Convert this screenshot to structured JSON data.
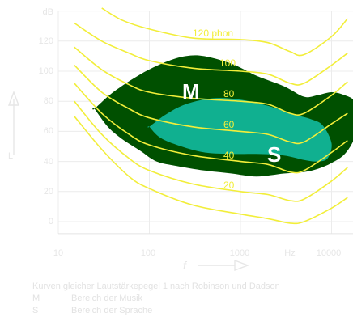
{
  "chart_data": {
    "type": "line",
    "x_scale": "log",
    "x_range_hz": [
      10,
      20000
    ],
    "x_ticks": [
      "10",
      "100",
      "1000",
      "Hz",
      "10000"
    ],
    "y_range_db": [
      0,
      140
    ],
    "y_ticks": [
      "140",
      "120",
      "100",
      "80",
      "60",
      "40",
      "20",
      "0"
    ],
    "y_ticks_visible": [
      "dB",
      "120",
      "100",
      "80",
      "60",
      "40",
      "20",
      "0"
    ],
    "x_axis_label": "f",
    "grid": true,
    "series": [
      {
        "name": "120 phon",
        "x": [
          30,
          50,
          100,
          300,
          1000,
          2000,
          3500,
          5000,
          10000,
          15000
        ],
        "y": [
          142,
          134,
          128,
          122,
          121,
          119,
          113,
          111,
          123,
          135
        ]
      },
      {
        "name": "100",
        "x": [
          15,
          30,
          60,
          100,
          300,
          1000,
          2000,
          3500,
          5000,
          10000,
          15000
        ],
        "y": [
          132,
          120,
          112,
          107,
          102,
          100,
          98,
          92,
          92,
          104,
          112
        ]
      },
      {
        "name": "80",
        "x": [
          15,
          30,
          60,
          100,
          300,
          1000,
          2000,
          3500,
          5000,
          10000,
          15000
        ],
        "y": [
          116,
          101,
          91,
          86,
          82,
          80,
          78,
          72,
          72,
          84,
          93
        ]
      },
      {
        "name": "60",
        "x": [
          15,
          30,
          60,
          100,
          300,
          1000,
          2000,
          3500,
          5000,
          10000,
          15000
        ],
        "y": [
          104,
          86,
          75,
          69,
          63,
          60,
          58,
          53,
          53,
          65,
          72
        ]
      },
      {
        "name": "40",
        "x": [
          15,
          30,
          60,
          100,
          300,
          1000,
          2000,
          3500,
          5000,
          10000,
          15000
        ],
        "y": [
          92,
          72,
          58,
          51,
          44,
          40,
          38,
          33,
          34,
          46,
          54
        ]
      },
      {
        "name": "20",
        "x": [
          15,
          30,
          60,
          100,
          300,
          1000,
          2000,
          3500,
          5000,
          10000,
          15000
        ],
        "y": [
          80,
          58,
          42,
          34,
          25,
          20,
          18,
          14,
          15,
          27,
          36
        ]
      },
      {
        "name": "",
        "x": [
          15,
          30,
          60,
          100,
          300,
          1000,
          2000,
          3500,
          5000,
          10000,
          15000
        ],
        "y": [
          70,
          48,
          30,
          22,
          11,
          5,
          2,
          -1,
          0,
          9,
          16
        ]
      }
    ],
    "regions": [
      {
        "name": "M",
        "x": [
          25,
          40,
          80,
          150,
          250,
          400,
          800,
          1500,
          3000,
          5000,
          7000,
          10000,
          14000,
          18000,
          20000,
          18000,
          14000,
          10000,
          7000,
          5000,
          3000,
          1500,
          800,
          400,
          200,
          120,
          80,
          50,
          35,
          25
        ],
        "y": [
          75,
          86,
          98,
          106,
          110,
          110,
          105,
          97,
          90,
          83,
          84,
          86,
          84,
          80,
          70,
          56,
          45,
          39,
          35,
          33,
          32,
          30,
          32,
          34,
          37,
          40,
          47,
          55,
          63,
          75
        ]
      },
      {
        "name": "S",
        "x": [
          100,
          150,
          250,
          500,
          1000,
          2000,
          4000,
          6000,
          8000,
          10000,
          9000,
          7000,
          5000,
          3000,
          1500,
          800,
          400,
          200,
          130,
          100
        ],
        "y": [
          63,
          71,
          78,
          82,
          81,
          77,
          71,
          68,
          64,
          52,
          42,
          40,
          41,
          44,
          45,
          45,
          46,
          51,
          56,
          63
        ]
      }
    ],
    "curve_labels": [
      "120 phon",
      "100",
      "80",
      "60",
      "40",
      "20"
    ],
    "region_labels": [
      "M",
      "S"
    ]
  },
  "caption": {
    "title": "Kurven gleicher Lautstärkepegel 1 nach Robinson und Dadson",
    "legend": [
      {
        "key": "M",
        "text": "Bereich der Musik"
      },
      {
        "key": "S",
        "text": "Bereich der Sprache"
      }
    ]
  },
  "colors": {
    "music": "#005000",
    "speech": "#10b090",
    "curve": "#f2ee3a",
    "faint": "#e4e4e4"
  }
}
